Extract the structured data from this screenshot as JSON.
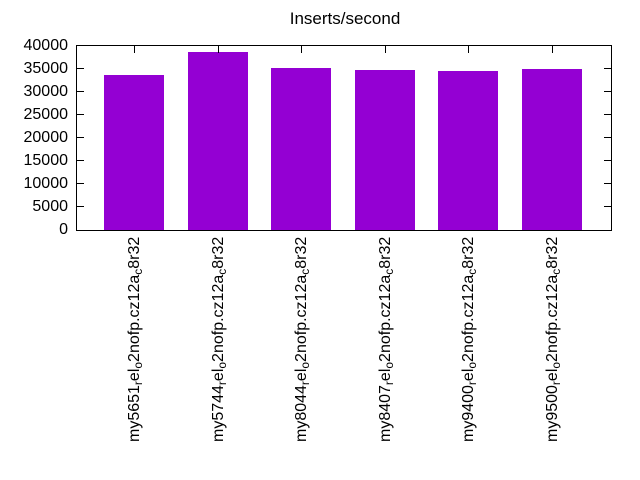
{
  "title": "Inserts/second",
  "chart_data": {
    "type": "bar",
    "title": "Inserts/second",
    "categories": [
      "my5651_rel_o2nofp.cz12a_c8r32",
      "my5744_rel_o2nofp.cz12a_c8r32",
      "my8044_rel_o2nofp.cz12a_c8r32",
      "my8407_rel_o2nofp.cz12a_c8r32",
      "my9400_rel_o2nofp.cz12a_c8r32",
      "my9500_rel_o2nofp.cz12a_c8r32"
    ],
    "categories_display": [
      {
        "p1": "my5651",
        "s1": "r",
        "p2": "el",
        "s2": "o",
        "p3": "2nofp.cz12a",
        "s3": "c",
        "p4": "8r32"
      },
      {
        "p1": "my5744",
        "s1": "r",
        "p2": "el",
        "s2": "o",
        "p3": "2nofp.cz12a",
        "s3": "c",
        "p4": "8r32"
      },
      {
        "p1": "my8044",
        "s1": "r",
        "p2": "el",
        "s2": "o",
        "p3": "2nofp.cz12a",
        "s3": "c",
        "p4": "8r32"
      },
      {
        "p1": "my8407",
        "s1": "r",
        "p2": "el",
        "s2": "o",
        "p3": "2nofp.cz12a",
        "s3": "c",
        "p4": "8r32"
      },
      {
        "p1": "my9400",
        "s1": "r",
        "p2": "el",
        "s2": "o",
        "p3": "2nofp.cz12a",
        "s3": "c",
        "p4": "8r32"
      },
      {
        "p1": "my9500",
        "s1": "r",
        "p2": "el",
        "s2": "o",
        "p3": "2nofp.cz12a",
        "s3": "c",
        "p4": "8r32"
      }
    ],
    "values": [
      33600,
      38700,
      35200,
      34800,
      34600,
      35100
    ],
    "xlabel": "",
    "ylabel": "",
    "ylim": [
      0,
      40000
    ],
    "ytick_step": 5000,
    "ytick_labels": [
      "0",
      "5000",
      "10000",
      "15000",
      "20000",
      "25000",
      "30000",
      "35000",
      "40000"
    ],
    "bar_color": "#9400d3",
    "axis_color": "#000000",
    "background_color": "#ffffff",
    "grid": false,
    "legend": "none"
  }
}
